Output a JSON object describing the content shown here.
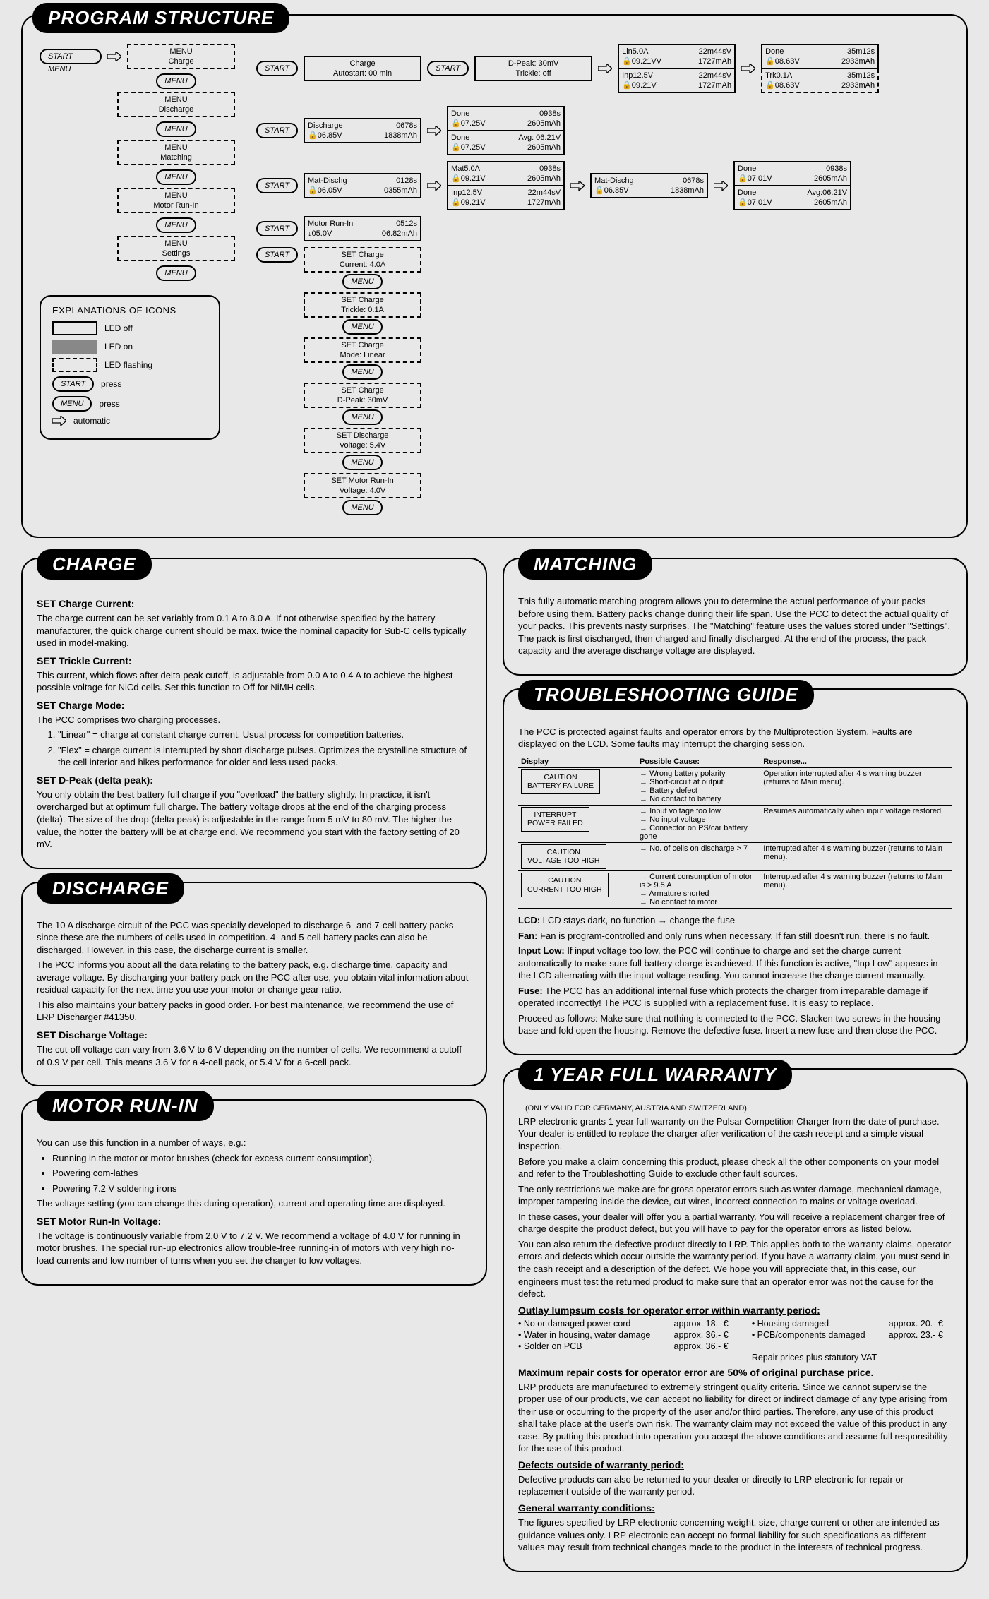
{
  "headers": {
    "program_structure": "PROGRAM STRUCTURE",
    "matching": "MATCHING",
    "troubleshooting": "TROUBLESHOOTING GUIDE",
    "charge": "CHARGE",
    "discharge": "DISCHARGE",
    "motor_run_in": "MOTOR RUN-IN",
    "warranty": "1 YEAR FULL WARRANTY"
  },
  "buttons": {
    "start_menu": "START MENU",
    "start": "START",
    "menu": "MENU"
  },
  "diagram": {
    "menus": {
      "charge": {
        "l1": "MENU",
        "l2": "Charge"
      },
      "discharge": {
        "l1": "MENU",
        "l2": "Discharge"
      },
      "matching": {
        "l1": "MENU",
        "l2": "Matching"
      },
      "motor": {
        "l1": "MENU",
        "l2": "Motor Run-In"
      },
      "settings": {
        "l1": "MENU",
        "l2": "Settings"
      }
    },
    "charge_flow": {
      "b1": {
        "l1": "Charge",
        "l2": "Autostart: 00 min"
      },
      "b2": {
        "l1": "D-Peak: 30mV",
        "l2": "Trickle: off"
      },
      "b3a": {
        "l": "Lin5.0A",
        "r": "22m44sV"
      },
      "b3b": {
        "l": "🔒09.21VV",
        "r": "1727mAh"
      },
      "b3c": {
        "l": "Inp12.5V",
        "r": "22m44sV"
      },
      "b3d": {
        "l": "🔒09.21V",
        "r": "1727mAh"
      },
      "b4a": {
        "l": "Done",
        "r": "35m12s"
      },
      "b4b": {
        "l": "🔒08.63V",
        "r": "2933mAh"
      },
      "b4c": {
        "l": "Trk0.1A",
        "r": "35m12s"
      },
      "b4d": {
        "l": "🔒08.63V",
        "r": "2933mAh"
      }
    },
    "discharge_flow": {
      "b1": {
        "l1l": "Discharge",
        "l1r": "0678s",
        "l2l": "🔒06.85V",
        "l2r": "1838mAh"
      },
      "b2a": {
        "l": "Done",
        "r": "0938s"
      },
      "b2b": {
        "l": "🔒07.25V",
        "r": "2605mAh"
      },
      "b2c": {
        "l": "Done",
        "r": "Avg: 06.21V"
      },
      "b2d": {
        "l": "🔒07.25V",
        "r": "2605mAh"
      }
    },
    "matching_flow": {
      "b1": {
        "l1l": "Mat-Dischg",
        "l1r": "0128s",
        "l2l": "🔒06.05V",
        "l2r": "0355mAh"
      },
      "b2a": {
        "l": "Mat5.0A",
        "r": "0938s"
      },
      "b2b": {
        "l": "🔒09.21V",
        "r": "2605mAh"
      },
      "b2c": {
        "l": "Inp12.5V",
        "r": "22m44sV"
      },
      "b2d": {
        "l": "🔒09.21V",
        "r": "1727mAh"
      },
      "b3": {
        "l1l": "Mat-Dischg",
        "l1r": "0678s",
        "l2l": "🔒06.85V",
        "l2r": "1838mAh"
      },
      "b4a": {
        "l": "Done",
        "r": "0938s"
      },
      "b4b": {
        "l": "🔒07.01V",
        "r": "2605mAh"
      },
      "b4c": {
        "l": "Done",
        "r": "Avg:06.21V"
      },
      "b4d": {
        "l": "🔒07.01V",
        "r": "2605mAh"
      }
    },
    "motor_flow": {
      "b1": {
        "l1l": "Motor Run-In",
        "l1r": "0512s",
        "l2l": "↓05.0V",
        "l2r": "06.82mAh"
      }
    },
    "settings_chain": [
      {
        "l1": "SET Charge",
        "l2": "Current: 4.0A"
      },
      {
        "l1": "SET Charge",
        "l2": "Trickle: 0.1A"
      },
      {
        "l1": "SET Charge",
        "l2": "Mode: Linear"
      },
      {
        "l1": "SET Charge",
        "l2": "D-Peak: 30mV"
      },
      {
        "l1": "SET Discharge",
        "l2": "Voltage: 5.4V"
      },
      {
        "l1": "SET Motor Run-In",
        "l2": "Voltage: 4.0V"
      }
    ]
  },
  "explanations": {
    "title": "EXPLANATIONS OF ICONS",
    "led_off": "LED off",
    "led_on": "LED on",
    "led_flash": "LED flashing",
    "start_press": "press",
    "menu_press": "press",
    "automatic": "automatic"
  },
  "matching_text": "This fully automatic matching program allows you to determine the actual performance of your packs before using them. Battery packs change during their life span. Use the PCC to detect the actual quality of your packs. This prevents nasty surprises. The \"Matching\" feature uses the values stored under \"Settings\". The pack is first discharged, then charged and finally discharged. At the end of the process, the pack capacity and the average discharge voltage are displayed.",
  "charge_section": {
    "h1": "SET Charge Current:",
    "p1": "The charge current can be set variably from 0.1 A to 8.0 A. If not otherwise specified by the battery manufacturer, the quick charge current should be max. twice the nominal capacity for Sub-C cells typically used in model-making.",
    "h2": "SET Trickle Current:",
    "p2": "This current, which flows after delta peak cutoff, is adjustable from 0.0 A to 0.4 A to achieve the highest possible voltage for NiCd cells. Set this function to Off for NiMH cells.",
    "h3": "SET Charge Mode:",
    "p3": "The PCC comprises two charging processes.",
    "li1": "\"Linear\" = charge at constant charge current. Usual process for competition batteries.",
    "li2": "\"Flex\" = charge current is interrupted by short discharge pulses. Optimizes the crystalline structure of the cell interior and hikes performance for older and less used packs.",
    "h4": "SET D-Peak (delta peak):",
    "p4": "You only obtain the best battery full charge if you \"overload\" the battery slightly. In practice, it isn't overcharged but at optimum full charge. The battery voltage drops at the end of the charging process (delta). The size of the drop (delta peak) is adjustable in the range from 5 mV to 80 mV. The higher the value, the hotter the battery will be at charge end. We recommend you start with the factory setting of 20 mV."
  },
  "discharge_section": {
    "p1": "The 10 A discharge circuit of the PCC was specially developed to discharge 6- and 7-cell battery packs since these are the numbers of cells used in competition. 4- and 5-cell battery packs can also be discharged. However, in this case, the discharge current is smaller.",
    "p2": "The PCC informs you about all the data relating to the battery pack, e.g. discharge time, capacity and average voltage. By discharging your battery pack on the PCC after use, you obtain vital information about residual capacity for the next time you use your motor or change gear ratio.",
    "p3": "This also maintains your battery packs in good order. For best maintenance, we recommend the use of LRP Discharger #41350.",
    "h1": "SET Discharge Voltage:",
    "p4": "The cut-off voltage can vary from 3.6 V to 6 V depending on the number of cells. We recommend a cutoff of 0.9 V per cell. This means 3.6 V for a 4-cell pack, or 5.4 V for a 6-cell pack."
  },
  "motor_section": {
    "intro": "You can use this function in a number of ways, e.g.:",
    "li1": "Running in the motor or motor brushes (check for excess current consumption).",
    "li2": "Powering com-lathes",
    "li3": "Powering 7.2 V soldering irons",
    "p2": "The voltage setting (you can change this during operation), current and operating time are displayed.",
    "h1": "SET Motor Run-In Voltage:",
    "p3": "The voltage is continuously variable from 2.0 V to 7.2 V. We recommend a voltage of 4.0 V for running in motor brushes. The special run-up electronics allow trouble-free running-in of motors with very high no-load currents and low number of turns when you set the charger to low voltages."
  },
  "troubleshooting": {
    "intro": "The PCC is protected against faults and operator errors by the Multiprotection System. Faults are displayed on the LCD. Some faults may interrupt the charging session.",
    "th1": "Display",
    "th2": "Possible Cause:",
    "th3": "Response...",
    "rows": [
      {
        "display": "CAUTION\nBATTERY FAILURE",
        "causes": [
          "Wrong battery polarity",
          "Short-circuit at output",
          "Battery defect",
          "No contact to battery"
        ],
        "response": "Operation interrupted after 4 s warning buzzer (returns to Main menu)."
      },
      {
        "display": "INTERRUPT\nPOWER FAILED",
        "causes": [
          "Input voltage too low",
          "No input voltage",
          "Connector on PS/car battery gone"
        ],
        "response": "Resumes automatically when input voltage restored"
      },
      {
        "display": "CAUTION\nVOLTAGE TOO HIGH",
        "causes": [
          "No. of cells on discharge > 7"
        ],
        "response": "Interrupted after 4 s warning buzzer (returns to Main menu)."
      },
      {
        "display": "CAUTION\nCURRENT TOO HIGH",
        "causes": [
          "Current consumption of motor is > 9.5 A",
          "Armature shorted",
          "No contact to motor"
        ],
        "response": "Interrupted after 4 s warning buzzer (returns to Main menu)."
      }
    ],
    "lcd_note_b": "LCD:",
    "lcd_note": " LCD stays dark, no function → change the fuse",
    "fan_b": "Fan:",
    "fan": " Fan is program-controlled and only runs when necessary. If fan still doesn't run, there is no fault.",
    "input_b": "Input Low:",
    "input": " If input voltage too low, the PCC will continue to charge and set the charge current automatically to make sure full battery charge is achieved. If this function is active, \"Inp Low\" appears in the LCD alternating with the input voltage reading. You cannot increase the charge current manually.",
    "fuse_b": "Fuse:",
    "fuse": " The PCC has an additional internal fuse which protects the charger from irreparable damage if operated incorrectly! The PCC is supplied with a replacement fuse. It is easy to replace.",
    "proceed": "Proceed as follows: Make sure that nothing is connected to the PCC. Slacken two screws in the housing base and fold open the housing. Remove the defective fuse. Insert a new fuse and then close the PCC."
  },
  "warranty": {
    "note": "(ONLY VALID FOR GERMANY, AUSTRIA AND SWITZERLAND)",
    "p1": "LRP electronic grants 1 year full warranty on the Pulsar Competition Charger from the date of purchase. Your dealer is entitled to replace the charger after verification of the cash receipt and a simple visual inspection.",
    "p2": "Before you make a claim concerning this product, please check all the other components on your model and refer to the Troubleshotting Guide to exclude other fault sources.",
    "p3": "The only restrictions we make are for gross operator errors such as water damage, mechanical damage, improper tampering inside the device, cut wires, incorrect connection to mains or voltage overload.",
    "p4": "In these cases, your dealer will offer you a partial warranty. You will receive a replacement charger free of charge despite the product defect, but you will have to pay for the operator errors as listed below.",
    "p5": "You can also return the defective product directly to LRP. This applies both to the warranty claims, operator errors and defects which occur outside the warranty period. If you have a warranty claim, you must send in the cash receipt and a description of the defect. We hope you will appreciate that, in this case, our engineers must test the returned product to make sure that an operator error was not the cause for the defect.",
    "u1": "Outlay lumpsum costs for operator error within warranty period:",
    "costs": [
      {
        "item": "No or damaged power cord",
        "price": "approx. 18.- €"
      },
      {
        "item": "Housing damaged",
        "price": "approx. 20.- €"
      },
      {
        "item": "Water in housing, water damage",
        "price": "approx. 36.- €"
      },
      {
        "item": "PCB/components damaged",
        "price": "approx. 23.- €"
      },
      {
        "item": "Solder on PCB",
        "price": "approx. 36.- €"
      },
      {
        "item_plain": "Repair prices plus statutory VAT",
        "price": ""
      }
    ],
    "u2": "Maximum repair costs for operator error are 50% of original purchase price.",
    "p6": "LRP products are manufactured to extremely stringent quality criteria. Since we cannot supervise the proper use of our products, we can accept no liability for direct or indirect damage of any type arising from their use or occurring to the property of the user and/or third parties. Therefore, any use of this product shall take place at the user's own risk. The warranty claim may not exceed the value of this product in any case. By putting this product into operation you accept the above conditions and assume full responsibility for the use of this product.",
    "u3": "Defects outside of warranty period:",
    "p7": "Defective products can also be returned to your dealer or directly to LRP electronic for repair or replacement outside of the warranty period.",
    "u4": "General warranty conditions:",
    "p8": "The figures specified by LRP electronic concerning weight, size, charge current or other are intended as guidance values only. LRP electronic can accept no formal liability for such specifications as different values may result from technical changes made to the product in the interests of technical progress."
  }
}
